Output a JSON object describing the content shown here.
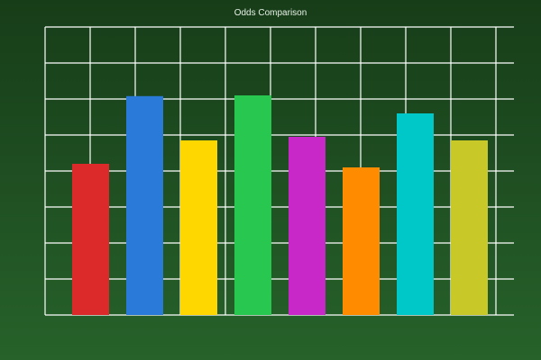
{
  "chart_data": {
    "type": "bar",
    "title": "Odds Comparison",
    "xlabel": "",
    "ylabel": "",
    "ylim": [
      0,
      8
    ],
    "grid": true,
    "values": [
      4.2,
      6.08,
      4.85,
      6.1,
      4.95,
      4.1,
      5.6,
      4.85
    ],
    "colors": [
      "#dc2a2a",
      "#2a7ada",
      "#ffd700",
      "#28c850",
      "#c828c8",
      "#ff8c00",
      "#00c8c8",
      "#c8c828"
    ]
  },
  "colors": {
    "background": "#1f4f22",
    "grid": "#ffffff",
    "title": "#e8f0e8"
  }
}
